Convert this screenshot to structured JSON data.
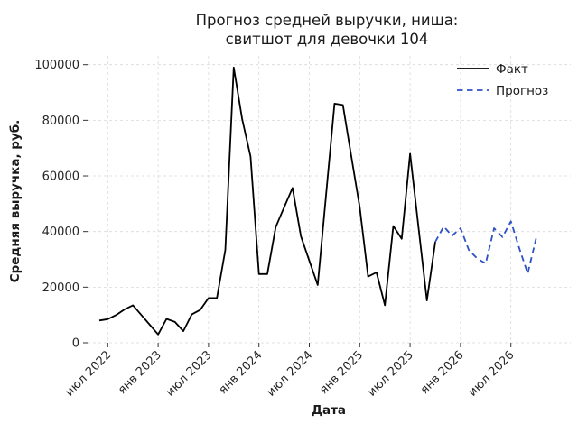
{
  "chart_data": {
    "type": "line",
    "title_lines": [
      "Прогноз средней выручки, ниша:",
      "свитшот для девочки 104"
    ],
    "xlabel": "Дата",
    "ylabel": "Средняя выручка, руб.",
    "ylim": [
      0,
      103000
    ],
    "y_ticks": [
      0,
      20000,
      40000,
      60000,
      80000,
      100000
    ],
    "y_tick_labels": [
      "0",
      "20000",
      "40000",
      "60000",
      "80000",
      "100000"
    ],
    "x_tick_labels": [
      "июл 2022",
      "янв 2023",
      "июл 2023",
      "янв 2024",
      "июл 2024",
      "янв 2025",
      "июл 2025",
      "янв 2026",
      "июл 2026"
    ],
    "x_tick_month_index": [
      1,
      7,
      13,
      19,
      25,
      31,
      37,
      43,
      49
    ],
    "grid": true,
    "legend_position": "upper right",
    "series": [
      {
        "name": "Факт",
        "style": "solid",
        "color": "#000000",
        "start_month_index": 0,
        "months": [
          "июн 2022",
          "июл 2022",
          "авг 2022",
          "сен 2022",
          "окт 2022",
          "ноя 2022",
          "дек 2022",
          "янв 2023",
          "фев 2023",
          "мар 2023",
          "апр 2023",
          "май 2023",
          "июн 2023",
          "июл 2023",
          "авг 2023",
          "сен 2023",
          "окт 2023",
          "ноя 2023",
          "дек 2023",
          "янв 2024",
          "фев 2024",
          "мар 2024",
          "апр 2024",
          "май 2024",
          "июн 2024",
          "июл 2024",
          "авг 2024",
          "сен 2024",
          "окт 2024",
          "ноя 2024",
          "дек 2024",
          "янв 2025",
          "фев 2025",
          "мар 2025",
          "апр 2025",
          "май 2025",
          "июн 2025",
          "июл 2025",
          "авг 2025",
          "сен 2025",
          "окт 2025"
        ],
        "values": [
          8000,
          8500,
          10000,
          12000,
          13500,
          10000,
          6500,
          3000,
          8600,
          7500,
          4200,
          10200,
          11800,
          16100,
          16100,
          33400,
          99000,
          80500,
          67000,
          24700,
          24700,
          41600,
          48700,
          55700,
          38300,
          29500,
          20800,
          53400,
          86000,
          85500,
          67000,
          48800,
          23800,
          25300,
          13500,
          42000,
          37400,
          68000,
          41500,
          15200,
          36300
        ]
      },
      {
        "name": "Прогноз",
        "style": "dashed",
        "color": "#2e52c5",
        "start_month_index": 40,
        "months": [
          "окт 2025",
          "ноя 2025",
          "дек 2025",
          "янв 2026",
          "фев 2026",
          "мар 2026",
          "апр 2026",
          "май 2026",
          "июн 2026",
          "июл 2026",
          "авг 2026",
          "сен 2026",
          "окт 2026"
        ],
        "values": [
          36300,
          41800,
          38500,
          41200,
          33300,
          30300,
          28500,
          41200,
          38000,
          43700,
          34000,
          24900,
          37500
        ]
      }
    ],
    "colors": {
      "fact_line": "#000000",
      "forecast_line": "#2e52c5",
      "grid": "#d9d9d9",
      "text": "#1a1a1a"
    }
  }
}
